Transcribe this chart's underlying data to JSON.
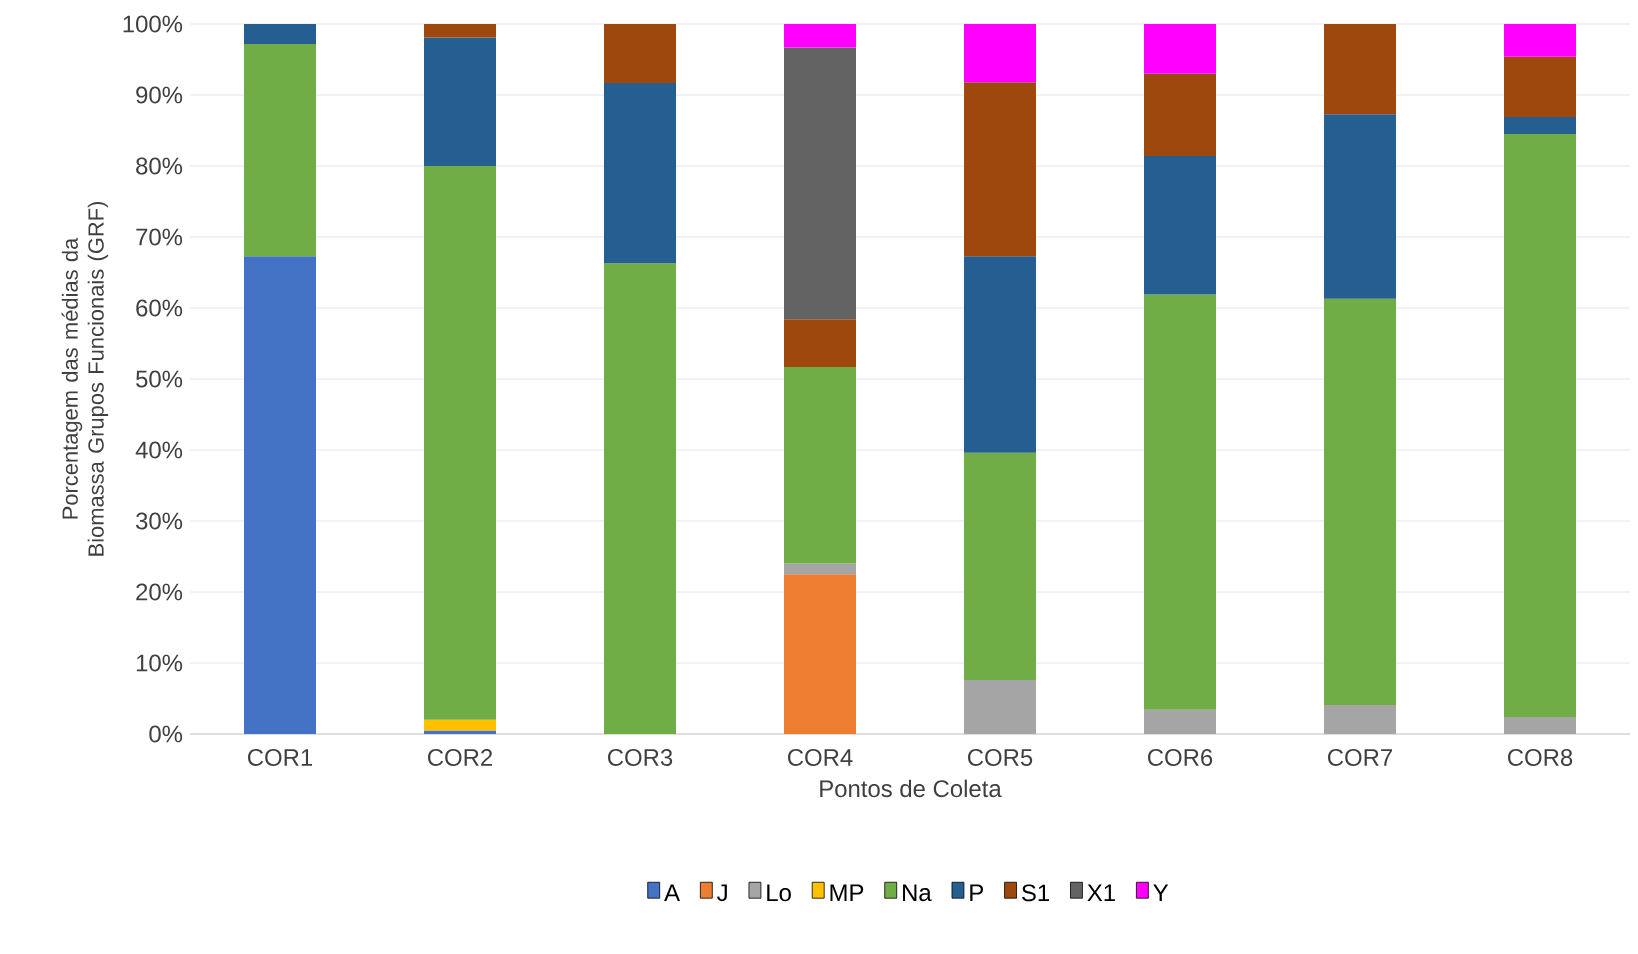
{
  "chart_data": {
    "type": "bar",
    "stacked": true,
    "xlabel": "Pontos de Coleta",
    "ylabel": "Porcentagem das médias da Biomassa Grupos Funcionais (GRF)",
    "categories": [
      "COR1",
      "COR2",
      "COR3",
      "COR4",
      "COR5",
      "COR6",
      "COR7",
      "COR8"
    ],
    "series": [
      {
        "name": "A",
        "color": "#4472c4",
        "values": [
          67.3,
          0.5,
          0,
          0,
          0,
          0,
          0,
          0
        ]
      },
      {
        "name": "J",
        "color": "#ed7d31",
        "values": [
          0,
          0,
          0,
          22.5,
          0,
          0,
          0,
          0
        ]
      },
      {
        "name": "Lo",
        "color": "#a5a5a5",
        "values": [
          0,
          0,
          0,
          1.5,
          7.6,
          3.4,
          4.1,
          2.4
        ]
      },
      {
        "name": "MP",
        "color": "#ffc000",
        "values": [
          0,
          1.5,
          0,
          0,
          0,
          0,
          0,
          0
        ]
      },
      {
        "name": "Na",
        "color": "#70ad47",
        "values": [
          29.9,
          78.0,
          66.3,
          27.7,
          32.0,
          58.5,
          57.2,
          82.1
        ]
      },
      {
        "name": "P",
        "color": "#255e91",
        "values": [
          2.8,
          18.1,
          25.4,
          0,
          27.7,
          19.5,
          26.0,
          2.4
        ]
      },
      {
        "name": "S1",
        "color": "#9e480e",
        "values": [
          0,
          1.9,
          8.3,
          6.7,
          24.5,
          11.6,
          12.7,
          8.5
        ]
      },
      {
        "name": "X1",
        "color": "#636363",
        "values": [
          0,
          0,
          0,
          38.3,
          0,
          0,
          0,
          0
        ]
      },
      {
        "name": "Y",
        "color": "#ff00ff",
        "values": [
          0,
          0,
          0,
          3.3,
          8.2,
          7.0,
          0,
          4.6
        ]
      }
    ],
    "ylim": [
      0,
      100
    ],
    "yticks": [
      {
        "value": 0,
        "label": "0%"
      },
      {
        "value": 10,
        "label": "10%"
      },
      {
        "value": 20,
        "label": "20%"
      },
      {
        "value": 30,
        "label": "30%"
      },
      {
        "value": 40,
        "label": "40%"
      },
      {
        "value": 50,
        "label": "50%"
      },
      {
        "value": 60,
        "label": "60%"
      },
      {
        "value": 70,
        "label": "70%"
      },
      {
        "value": 80,
        "label": "80%"
      },
      {
        "value": 90,
        "label": "90%"
      },
      {
        "value": 100,
        "label": "100%"
      }
    ],
    "grid": "y",
    "legend": "bottom"
  }
}
